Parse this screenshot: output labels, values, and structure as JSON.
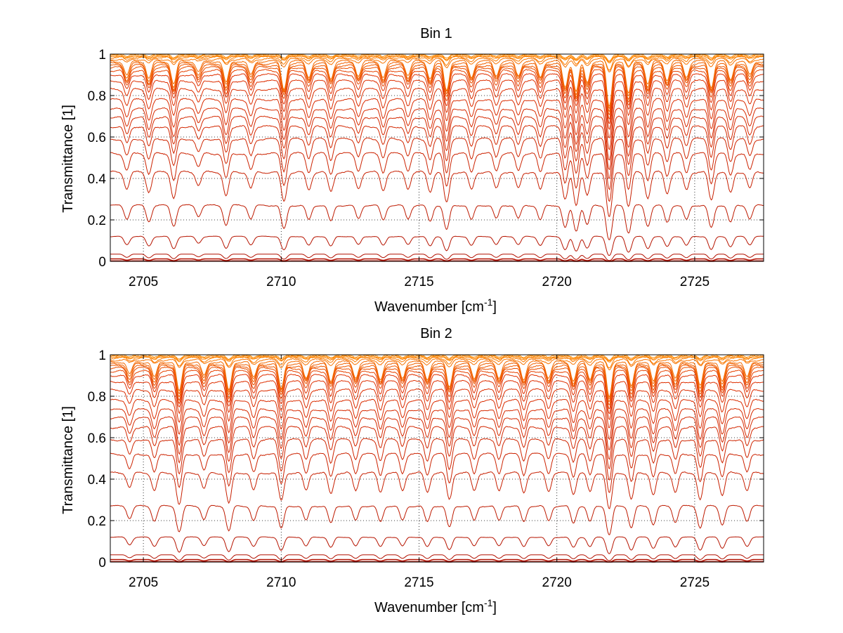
{
  "chart_data": [
    {
      "type": "line",
      "title": "Bin 1",
      "xlabel": "Wavenumber [cm",
      "xlabel_sup": "-1",
      "xlabel_end": "]",
      "ylabel": "Transmittance [1]",
      "xlim": [
        2703.8,
        2727.5
      ],
      "ylim": [
        0,
        1
      ],
      "xticks": [
        "2705",
        "2710",
        "2715",
        "2720",
        "2725"
      ],
      "yticks": [
        "0",
        "0.2",
        "0.4",
        "0.6",
        "0.8",
        "1"
      ],
      "grid": "dotted",
      "series_levels": [
        1.0,
        0.995,
        0.99,
        0.985,
        0.975,
        0.965,
        0.955,
        0.945,
        0.935,
        0.92,
        0.9,
        0.87,
        0.83,
        0.78,
        0.735,
        0.695,
        0.65,
        0.59,
        0.52,
        0.43,
        0.27,
        0.12,
        0.035,
        0.012,
        0.002
      ],
      "absorption_lines": [
        {
          "x": 2704.4,
          "d": 0.45
        },
        {
          "x": 2705.2,
          "d": 0.55
        },
        {
          "x": 2706.1,
          "d": 0.75
        },
        {
          "x": 2707.0,
          "d": 0.35
        },
        {
          "x": 2708.0,
          "d": 0.7
        },
        {
          "x": 2708.9,
          "d": 0.45
        },
        {
          "x": 2710.1,
          "d": 0.9
        },
        {
          "x": 2711.0,
          "d": 0.5
        },
        {
          "x": 2711.8,
          "d": 0.55
        },
        {
          "x": 2712.8,
          "d": 0.45
        },
        {
          "x": 2713.7,
          "d": 0.5
        },
        {
          "x": 2714.6,
          "d": 0.45
        },
        {
          "x": 2715.4,
          "d": 0.55
        },
        {
          "x": 2716.0,
          "d": 0.95
        },
        {
          "x": 2716.9,
          "d": 0.5
        },
        {
          "x": 2717.8,
          "d": 0.45
        },
        {
          "x": 2718.6,
          "d": 0.45
        },
        {
          "x": 2719.4,
          "d": 0.5
        },
        {
          "x": 2720.3,
          "d": 0.85
        },
        {
          "x": 2720.7,
          "d": 1.0
        },
        {
          "x": 2721.1,
          "d": 0.7
        },
        {
          "x": 2721.9,
          "d": 1.6
        },
        {
          "x": 2722.6,
          "d": 1.1
        },
        {
          "x": 2723.3,
          "d": 0.75
        },
        {
          "x": 2724.0,
          "d": 0.6
        },
        {
          "x": 2724.7,
          "d": 0.5
        },
        {
          "x": 2725.6,
          "d": 0.85
        },
        {
          "x": 2726.3,
          "d": 0.6
        },
        {
          "x": 2727.0,
          "d": 0.45
        }
      ]
    },
    {
      "type": "line",
      "title": "Bin 2",
      "xlabel": "Wavenumber [cm",
      "xlabel_sup": "-1",
      "xlabel_end": "]",
      "ylabel": "Transmittance [1]",
      "xlim": [
        2703.8,
        2727.5
      ],
      "ylim": [
        0,
        1
      ],
      "xticks": [
        "2705",
        "2710",
        "2715",
        "2720",
        "2725"
      ],
      "yticks": [
        "0",
        "0.2",
        "0.4",
        "0.6",
        "0.8",
        "1"
      ],
      "grid": "dotted",
      "series_levels": [
        1.0,
        0.995,
        0.99,
        0.985,
        0.975,
        0.965,
        0.955,
        0.945,
        0.935,
        0.92,
        0.9,
        0.87,
        0.83,
        0.78,
        0.735,
        0.695,
        0.65,
        0.59,
        0.52,
        0.43,
        0.27,
        0.12,
        0.035,
        0.012,
        0.002
      ],
      "absorption_lines": [
        {
          "x": 2704.5,
          "d": 0.4
        },
        {
          "x": 2705.4,
          "d": 0.5
        },
        {
          "x": 2706.3,
          "d": 1.0
        },
        {
          "x": 2707.2,
          "d": 0.45
        },
        {
          "x": 2708.1,
          "d": 0.95
        },
        {
          "x": 2709.0,
          "d": 0.5
        },
        {
          "x": 2710.0,
          "d": 0.85
        },
        {
          "x": 2710.9,
          "d": 0.5
        },
        {
          "x": 2711.8,
          "d": 0.6
        },
        {
          "x": 2712.7,
          "d": 0.5
        },
        {
          "x": 2713.6,
          "d": 0.55
        },
        {
          "x": 2714.4,
          "d": 0.5
        },
        {
          "x": 2715.3,
          "d": 0.55
        },
        {
          "x": 2716.1,
          "d": 0.8
        },
        {
          "x": 2717.0,
          "d": 0.5
        },
        {
          "x": 2717.9,
          "d": 0.5
        },
        {
          "x": 2718.8,
          "d": 0.55
        },
        {
          "x": 2719.7,
          "d": 0.5
        },
        {
          "x": 2720.6,
          "d": 0.6
        },
        {
          "x": 2721.2,
          "d": 0.55
        },
        {
          "x": 2721.9,
          "d": 1.2
        },
        {
          "x": 2722.7,
          "d": 0.8
        },
        {
          "x": 2723.5,
          "d": 0.65
        },
        {
          "x": 2724.3,
          "d": 0.55
        },
        {
          "x": 2725.2,
          "d": 0.8
        },
        {
          "x": 2726.0,
          "d": 0.65
        },
        {
          "x": 2726.9,
          "d": 0.5
        }
      ]
    }
  ],
  "colors": {
    "low": "#b01000",
    "mid": "#e03000",
    "high": "#ff8a00",
    "axis": "#000000",
    "grid": "#000000"
  }
}
